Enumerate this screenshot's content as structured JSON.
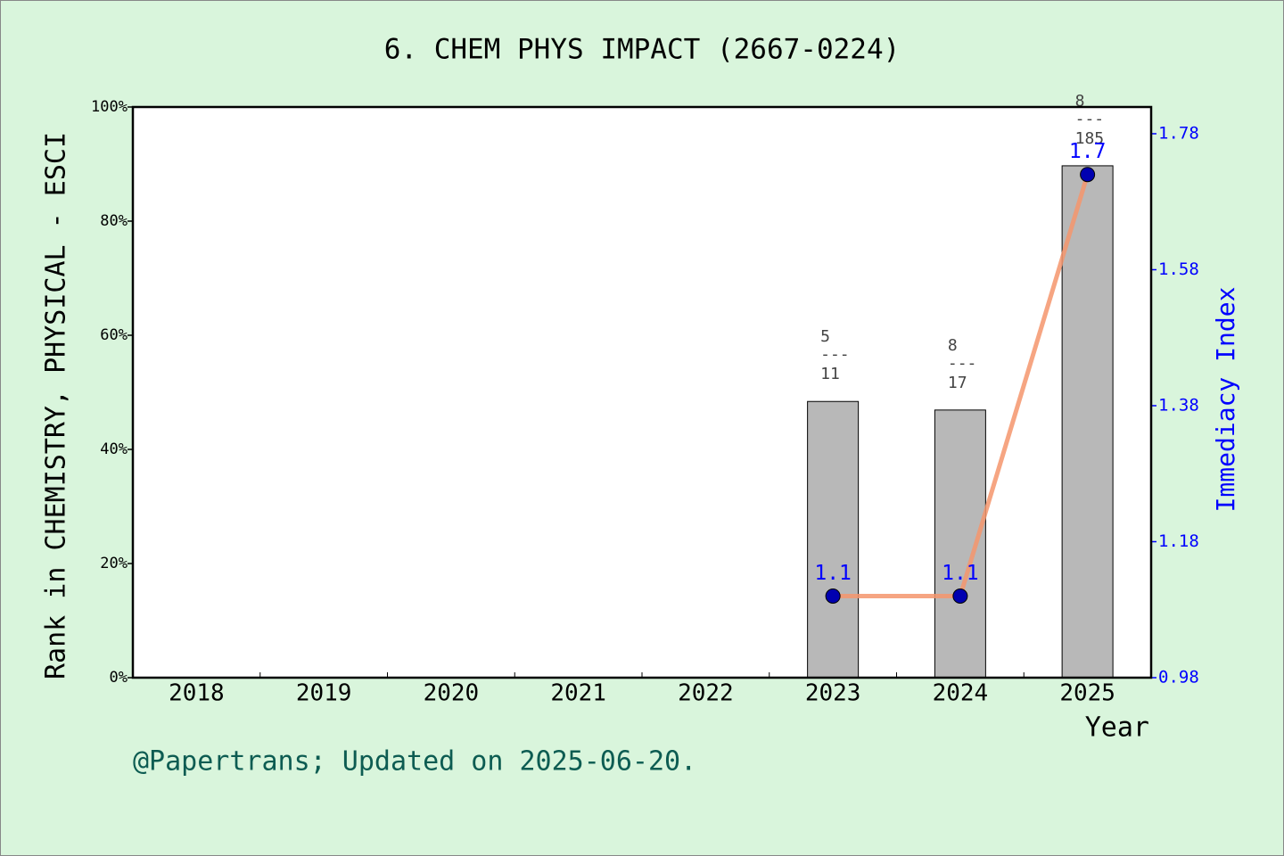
{
  "chart_data": {
    "type": "bar",
    "title": "6. CHEM PHYS IMPACT (2667-0224)",
    "ylabel": "Rank in CHEMISTRY, PHYSICAL - ESCI",
    "y2label": "Immediacy Index",
    "xlabel": "Year",
    "footer": "@Papertrans; Updated on 2025-06-20.",
    "categories": [
      "2018",
      "2019",
      "2020",
      "2021",
      "2022",
      "2023",
      "2024",
      "2025"
    ],
    "values": [
      null,
      null,
      null,
      null,
      null,
      48.4,
      46.9,
      89.7
    ],
    "color": "#b8b8b8",
    "rank": [
      null,
      null,
      null,
      null,
      null,
      5,
      8,
      8
    ],
    "separator": "---",
    "total": [
      null,
      null,
      null,
      null,
      null,
      11,
      17,
      185
    ],
    "ylim": [
      0,
      100
    ],
    "yticks": [
      {
        "value": 0,
        "label": "0%"
      },
      {
        "value": 20,
        "label": "20%"
      },
      {
        "value": 40,
        "label": "40%"
      },
      {
        "value": 60,
        "label": "60%"
      },
      {
        "value": 80,
        "label": "80%"
      },
      {
        "value": 100,
        "label": "100%"
      }
    ],
    "y2lim": [
      0.98,
      1.8193
    ],
    "y2ticks": [
      0.98,
      1.18,
      1.38,
      1.58,
      1.78
    ],
    "line": {
      "type": "line",
      "axis": "y2",
      "color": "#f4956c",
      "marker_color": "#0000b0",
      "label_color": "#0000ff",
      "values": [
        null,
        null,
        null,
        null,
        null,
        1.1,
        1.1,
        1.72
      ],
      "value_labels": [
        null,
        null,
        null,
        null,
        null,
        "1.1",
        "1.1",
        "1.7"
      ]
    }
  }
}
